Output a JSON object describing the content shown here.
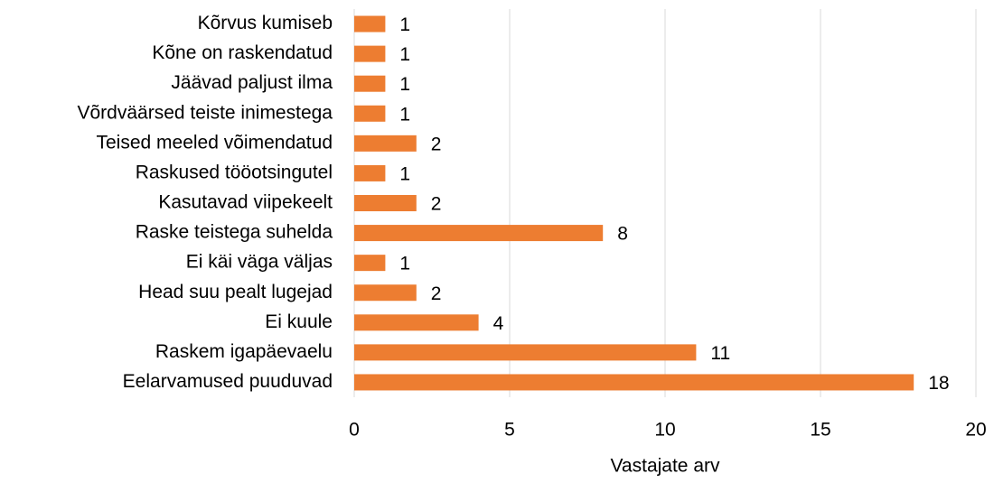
{
  "chart_data": {
    "type": "barh",
    "categories": [
      "Kõrvus kumiseb",
      "Kõne on raskendatud",
      "Jäävad paljust ilma",
      "Võrdväärsed teiste inimestega",
      "Teised meeled võimendatud",
      "Raskused tööotsingutel",
      "Kasutavad viipekeelt",
      "Raske teistega suhelda",
      "Ei käi väga väljas",
      "Head suu pealt lugejad",
      "Ei kuule",
      "Raskem igapäevaelu",
      "Eelarvamused puuduvad"
    ],
    "values": [
      1,
      1,
      1,
      1,
      2,
      1,
      2,
      8,
      1,
      2,
      4,
      11,
      18
    ],
    "color": "#ed7d31",
    "xlabel": "Vastajate arv",
    "xlim": [
      0,
      20
    ],
    "xticks": [
      0,
      5,
      10,
      15,
      20
    ],
    "grid": true
  }
}
